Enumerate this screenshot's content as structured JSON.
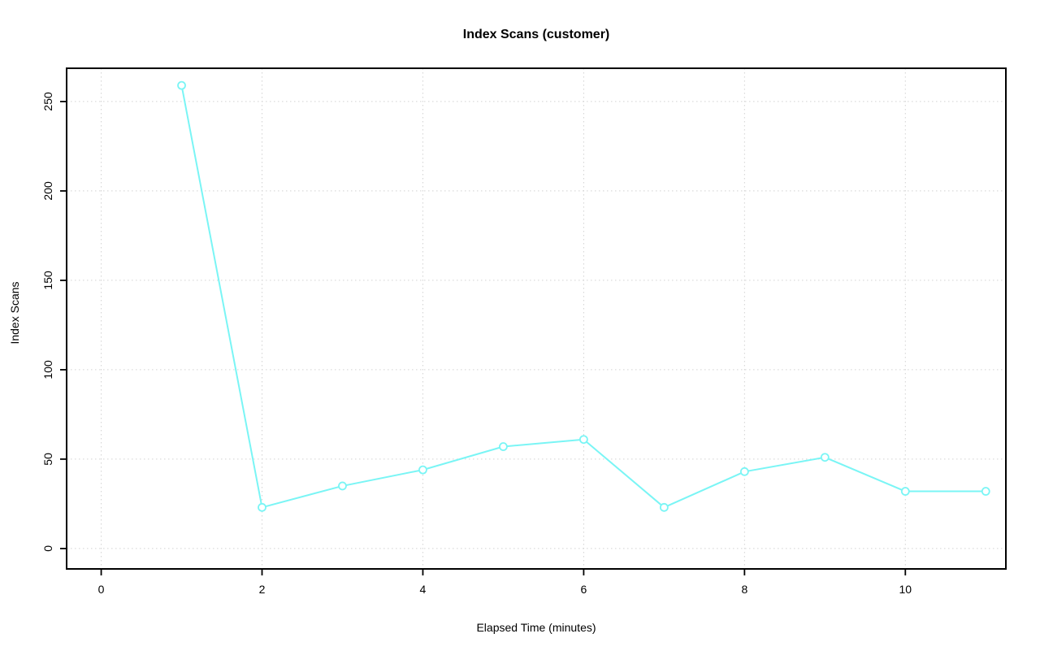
{
  "chart_data": {
    "type": "line",
    "title": "Index Scans (customer)",
    "xlabel": "Elapsed Time (minutes)",
    "ylabel": "Index Scans",
    "x": [
      1,
      2,
      3,
      4,
      5,
      6,
      7,
      8,
      9,
      10,
      11
    ],
    "y": [
      259,
      23,
      35,
      44,
      57,
      61,
      23,
      43,
      51,
      32,
      32
    ],
    "xticks": [
      0,
      2,
      4,
      6,
      8,
      10
    ],
    "yticks": [
      0,
      50,
      100,
      150,
      200,
      250
    ],
    "xlim": [
      -0.43,
      11.25
    ],
    "ylim": [
      -11.4,
      268.6
    ],
    "grid": true,
    "grid_style": "dotted",
    "legend": "none",
    "marker": "open-circle",
    "colors": {
      "line": "#7AF5F5",
      "marker_fill": "#ffffff",
      "grid": "#D2D2D2",
      "axis": "#000000",
      "text": "#000000",
      "background": "#ffffff"
    }
  }
}
